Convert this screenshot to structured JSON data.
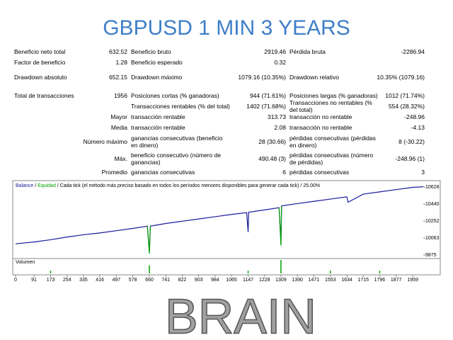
{
  "header": {
    "title": "GBPUSD 1 MIN 3 YEARS"
  },
  "table": {
    "rows": [
      [
        "Beneficio neto total",
        "632.52",
        "Beneficio bruto",
        "2919.46",
        "Pérdida bruta",
        "-2286.94"
      ],
      [
        "Factor de beneficio",
        "1.28",
        "Beneficio esperado",
        "0.32"
      ],
      [
        "Drawdown absoluto",
        "652.15",
        "Drawdown máximo",
        "1079.16 (10.35%)",
        "Drawdown relativo",
        "10.35% (1079.16)"
      ],
      [
        "Total de transacciones",
        "1956",
        "Posiciones cortas (% ganadoras)",
        "944 (71.61%)",
        "Posiciones largas (% ganadoras)",
        "1012 (71.74%)"
      ],
      [
        null,
        null,
        "Transacciones rentables (% del total)",
        "1402 (71.68%)",
        "Transacciones no rentables (% del total)",
        "554 (28.32%)"
      ],
      [
        "Mayor",
        null,
        "transacción rentable",
        "313.73",
        "transacción no rentable",
        "-248.96"
      ],
      [
        "Media",
        null,
        "transacción rentable",
        "2.08",
        "transacción no rentable",
        "-4.13"
      ],
      [
        "Número máximo",
        null,
        "ganancias consecutivas (beneficio en dinero)",
        "28 (30.66)",
        "pérdidas consecutivas (pérdidas en dinero)",
        "8 (-30.22)"
      ],
      [
        "Máx.",
        null,
        "beneficio consecutivo (número de ganancias)",
        "490.48 (3)",
        "pérdidas consecutivas (número de pérdidas)",
        "-248.96 (1)"
      ],
      [
        "Promedio",
        null,
        "ganancias consecutivas",
        "6",
        "pérdidas consecutivas",
        "3"
      ]
    ]
  },
  "chart_data": [
    {
      "type": "line",
      "note": "Cada tick (el método más preciso basado en todos los períodos menores disponibles para generar cada tick)",
      "separator": "/",
      "percent": "25.00%",
      "x": [
        0,
        91,
        173,
        254,
        335,
        416,
        497,
        578,
        650,
        660,
        665,
        741,
        822,
        903,
        984,
        1065,
        1140,
        1147,
        1150,
        1228,
        1300,
        1309,
        1312,
        1390,
        1471,
        1553,
        1634,
        1640,
        1715,
        1796,
        1877,
        1959,
        2011
      ],
      "series": [
        {
          "name": "Balance",
          "color": "#1a1a9c",
          "values": [
            10000,
            10020,
            10045,
            10075,
            10100,
            10120,
            10145,
            10170,
            10195,
            9920,
            10195,
            10225,
            10250,
            10275,
            10300,
            10325,
            10345,
            10130,
            10350,
            10375,
            10400,
            10000,
            10420,
            10445,
            10470,
            10495,
            10520,
            10460,
            10550,
            10575,
            10600,
            10625,
            10632
          ]
        },
        {
          "name": "Equidad",
          "color": "#00a000",
          "values": [
            null,
            null,
            null,
            null,
            null,
            null,
            null,
            null,
            10195,
            9890,
            10195,
            null,
            null,
            null,
            null,
            null,
            null,
            null,
            null,
            null,
            10400,
            9980,
            10420,
            null,
            null,
            null,
            null,
            null,
            null,
            null,
            null,
            null,
            null
          ]
        }
      ],
      "xlim": [
        0,
        2011
      ],
      "xticks": [
        0,
        91,
        173,
        254,
        335,
        416,
        497,
        578,
        660,
        741,
        822,
        903,
        984,
        1065,
        1147,
        1228,
        1309,
        1390,
        1471,
        1553,
        1634,
        1715,
        1796,
        1877,
        1959
      ],
      "ylim": [
        9860,
        10676
      ],
      "yticks": [
        9875,
        10063,
        10252,
        10440,
        10628
      ],
      "grid": false
    },
    {
      "type": "bar",
      "title": "Volumen",
      "color": "#00a000",
      "x": [
        173,
        660,
        1147,
        1309,
        1553,
        1796
      ],
      "values": [
        2,
        6,
        2,
        10,
        2,
        2
      ],
      "xlim": [
        0,
        2011
      ],
      "ylim": [
        0,
        10
      ]
    }
  ],
  "footer": {
    "text": "BRAIN"
  }
}
